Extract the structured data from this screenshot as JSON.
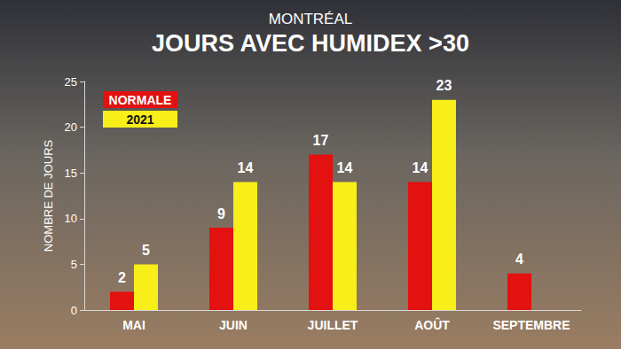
{
  "chart_data": {
    "type": "bar",
    "title": "JOURS AVEC HUMIDEX >30",
    "subtitle": "MONTRÉAL",
    "y_label": "NOMBRE DE JOURS",
    "categories": [
      "MAI",
      "JUIN",
      "JUILLET",
      "AOÛT",
      "SEPTEMBRE"
    ],
    "series": [
      {
        "name": "NORMALE",
        "color": "#e3110f",
        "values": [
          2,
          9,
          17,
          14,
          4
        ]
      },
      {
        "name": "2021",
        "color": "#f7ee1a",
        "values": [
          5,
          14,
          14,
          23,
          null
        ]
      }
    ],
    "ylim": [
      0,
      25
    ],
    "yticks": [
      0,
      5,
      10,
      15,
      20,
      25
    ],
    "grid": false,
    "legend": "top-left",
    "data_labels": true
  }
}
